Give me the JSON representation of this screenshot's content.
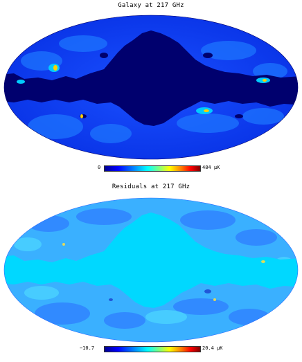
{
  "panels": [
    {
      "title": "Galaxy at 217 GHz",
      "colorbar_min": "0",
      "colorbar_max": "484 µK"
    },
    {
      "title": "Residuals at 217 GHz",
      "colorbar_min": "−10.7",
      "colorbar_max": "20.4 µK"
    }
  ],
  "colors": {
    "background_dark": "#00006e",
    "galaxy_field": "#0a3cff",
    "galaxy_bright": "#00ccff",
    "hotspot": "#ffd000",
    "residual_field": "#00d8ff",
    "residual_dark": "#2a6cff"
  }
}
